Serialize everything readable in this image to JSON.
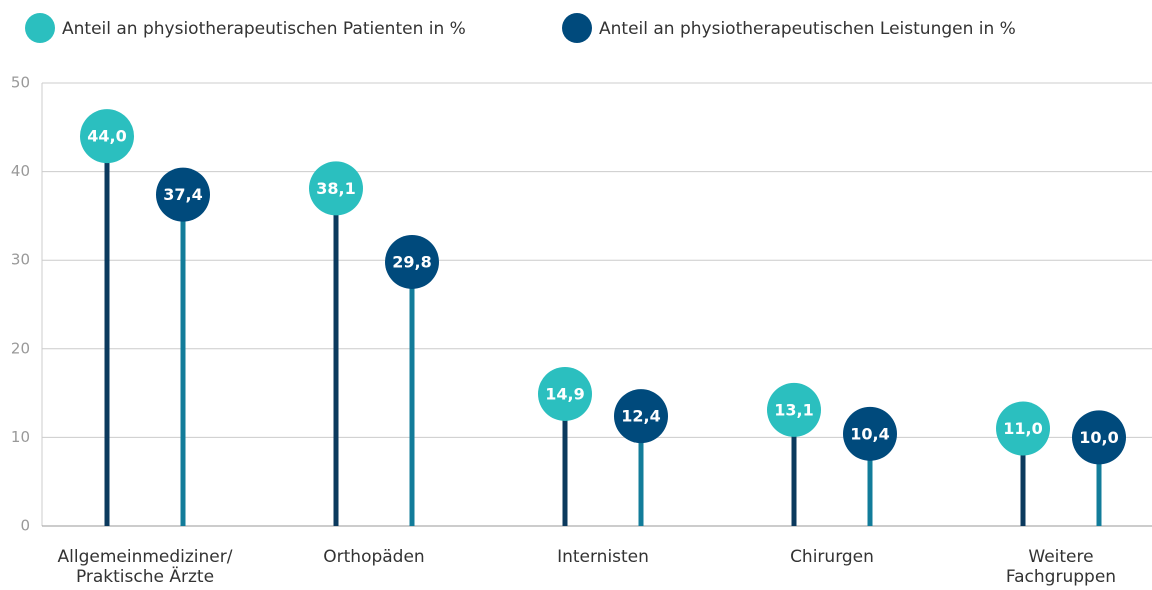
{
  "chart_data": {
    "type": "lollipop",
    "categories": [
      "Allgemeinmediziner/\nPraktische Ärzte",
      "Orthopäden",
      "Internisten",
      "Chirurgen",
      "Weitere\nFachgruppen"
    ],
    "series": [
      {
        "name": "Anteil an physiotherapeutischen Patienten in %",
        "color": "#2bbfbf",
        "stem_color": "#0b3a5e",
        "values": [
          44.0,
          38.1,
          14.9,
          13.1,
          11.0
        ],
        "value_labels": [
          "44,0",
          "38,1",
          "14,9",
          "13,1",
          "11,0"
        ]
      },
      {
        "name": "Anteil an physiotherapeutischen Leistungen in %",
        "color": "#004a7c",
        "stem_color": "#127c9a",
        "values": [
          37.4,
          29.8,
          12.4,
          10.4,
          10.0
        ],
        "value_labels": [
          "37,4",
          "29,8",
          "12,4",
          "10,4",
          "10,0"
        ]
      }
    ],
    "ylim": [
      0,
      50
    ],
    "yticks": [
      0,
      10,
      20,
      30,
      40,
      50
    ],
    "grid": true,
    "legend": "top"
  }
}
